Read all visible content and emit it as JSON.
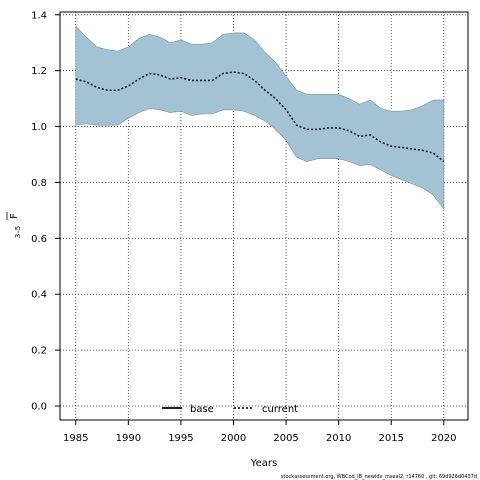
{
  "chart_data": {
    "type": "line",
    "xlabel": "Years",
    "ylabel_main": "F",
    "ylabel_sub": "3–5",
    "xlim": [
      1983.5,
      2022.3
    ],
    "ylim": [
      -0.05,
      1.41
    ],
    "xticks": [
      1985,
      1990,
      1995,
      2000,
      2005,
      2010,
      2015,
      2020
    ],
    "yticks": [
      0.0,
      0.2,
      0.4,
      0.6,
      0.8,
      1.0,
      1.2,
      1.4
    ],
    "ytick_labels": [
      "0.0",
      "0.2",
      "0.4",
      "0.6",
      "0.8",
      "1.0",
      "1.2",
      "1.4"
    ],
    "grid": true,
    "legend_position": "bottom-center",
    "years": [
      1985,
      1986,
      1987,
      1988,
      1989,
      1990,
      1991,
      1992,
      1993,
      1994,
      1995,
      1996,
      1997,
      1998,
      1999,
      2000,
      2001,
      2002,
      2003,
      2004,
      2005,
      2006,
      2007,
      2008,
      2009,
      2010,
      2011,
      2012,
      2013,
      2014,
      2015,
      2016,
      2017,
      2018,
      2019,
      2020
    ],
    "band": {
      "color": "#A3C3D5",
      "edge_color": "#7F8F99",
      "upper": [
        1.36,
        1.32,
        1.285,
        1.275,
        1.27,
        1.285,
        1.315,
        1.33,
        1.32,
        1.3,
        1.31,
        1.295,
        1.295,
        1.3,
        1.33,
        1.335,
        1.335,
        1.31,
        1.265,
        1.23,
        1.18,
        1.13,
        1.115,
        1.115,
        1.115,
        1.115,
        1.1,
        1.08,
        1.095,
        1.065,
        1.055,
        1.055,
        1.06,
        1.075,
        1.095,
        1.095
      ],
      "lower": [
        1.005,
        1.01,
        1.005,
        1.005,
        1.005,
        1.03,
        1.05,
        1.065,
        1.06,
        1.05,
        1.055,
        1.04,
        1.045,
        1.045,
        1.06,
        1.06,
        1.055,
        1.04,
        1.02,
        0.99,
        0.95,
        0.89,
        0.875,
        0.885,
        0.885,
        0.885,
        0.875,
        0.86,
        0.865,
        0.845,
        0.825,
        0.81,
        0.795,
        0.78,
        0.755,
        0.705
      ]
    },
    "series": [
      {
        "name": "current",
        "color": "#1A1A1A",
        "style": "dotted",
        "values": [
          1.17,
          1.16,
          1.14,
          1.13,
          1.13,
          1.145,
          1.17,
          1.19,
          1.185,
          1.17,
          1.175,
          1.165,
          1.165,
          1.165,
          1.19,
          1.195,
          1.19,
          1.165,
          1.13,
          1.1,
          1.06,
          1.005,
          0.99,
          0.99,
          0.995,
          0.995,
          0.985,
          0.965,
          0.97,
          0.945,
          0.93,
          0.925,
          0.92,
          0.915,
          0.905,
          0.875
        ]
      }
    ],
    "legend": [
      {
        "label": "base",
        "style": "solid",
        "color": "#000000"
      },
      {
        "label": "current",
        "style": "dotted",
        "color": "#1A1A1A"
      }
    ]
  },
  "footer": "stockassessment.org, WBCod_IB_newidx_mseal2, r14760 , git: 69d926d0437d"
}
